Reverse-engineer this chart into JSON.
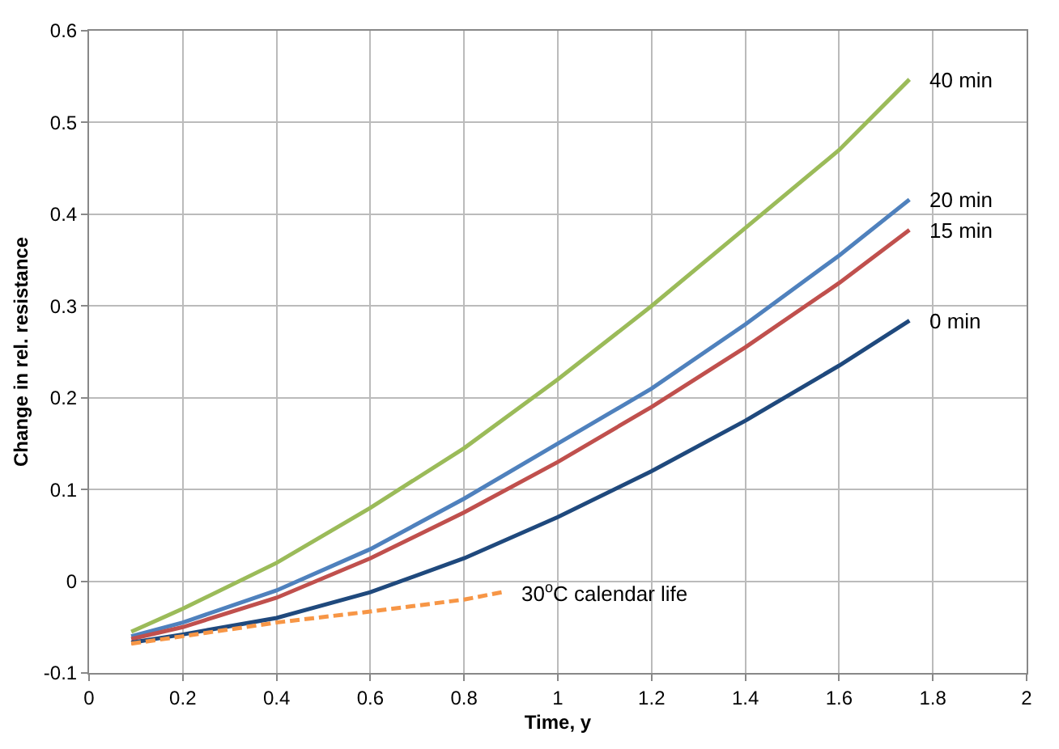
{
  "chart_data": {
    "type": "line",
    "xlabel": "Time, y",
    "ylabel": "Change in rel. resistance",
    "xlim": [
      0,
      2
    ],
    "xticks": [
      0,
      0.2,
      0.4,
      0.6,
      0.8,
      1,
      1.2,
      1.4,
      1.6,
      1.8,
      2
    ],
    "ylim": [
      -0.1,
      0.6
    ],
    "yticks": [
      -0.1,
      0,
      0.1,
      0.2,
      0.3,
      0.4,
      0.5,
      0.6
    ],
    "grid": true,
    "legend": false,
    "marker": "none",
    "x": [
      0.09,
      0.2,
      0.4,
      0.6,
      0.8,
      1.0,
      1.2,
      1.4,
      1.6,
      1.75
    ],
    "series": [
      {
        "name": "40 min",
        "color": "#9bbb59",
        "values": [
          -0.055,
          -0.03,
          0.02,
          0.08,
          0.145,
          0.22,
          0.3,
          0.385,
          0.47,
          0.547
        ]
      },
      {
        "name": "20 min",
        "color": "#4f81bd",
        "values": [
          -0.06,
          -0.045,
          -0.01,
          0.035,
          0.09,
          0.15,
          0.21,
          0.28,
          0.355,
          0.416
        ]
      },
      {
        "name": "15 min",
        "color": "#c0504d",
        "values": [
          -0.063,
          -0.05,
          -0.018,
          0.025,
          0.075,
          0.13,
          0.19,
          0.255,
          0.325,
          0.383
        ]
      },
      {
        "name": "0 min",
        "color": "#1f497d",
        "values": [
          -0.067,
          -0.058,
          -0.04,
          -0.012,
          0.025,
          0.07,
          0.12,
          0.175,
          0.235,
          0.284
        ]
      },
      {
        "name": "30$^{o}$C calendar life",
        "color": "#f79646",
        "line_style": "dashed",
        "x": [
          0.09,
          0.2,
          0.4,
          0.6,
          0.8,
          0.88
        ],
        "values": [
          -0.068,
          -0.06,
          -0.045,
          -0.033,
          -0.02,
          -0.012
        ]
      }
    ]
  }
}
